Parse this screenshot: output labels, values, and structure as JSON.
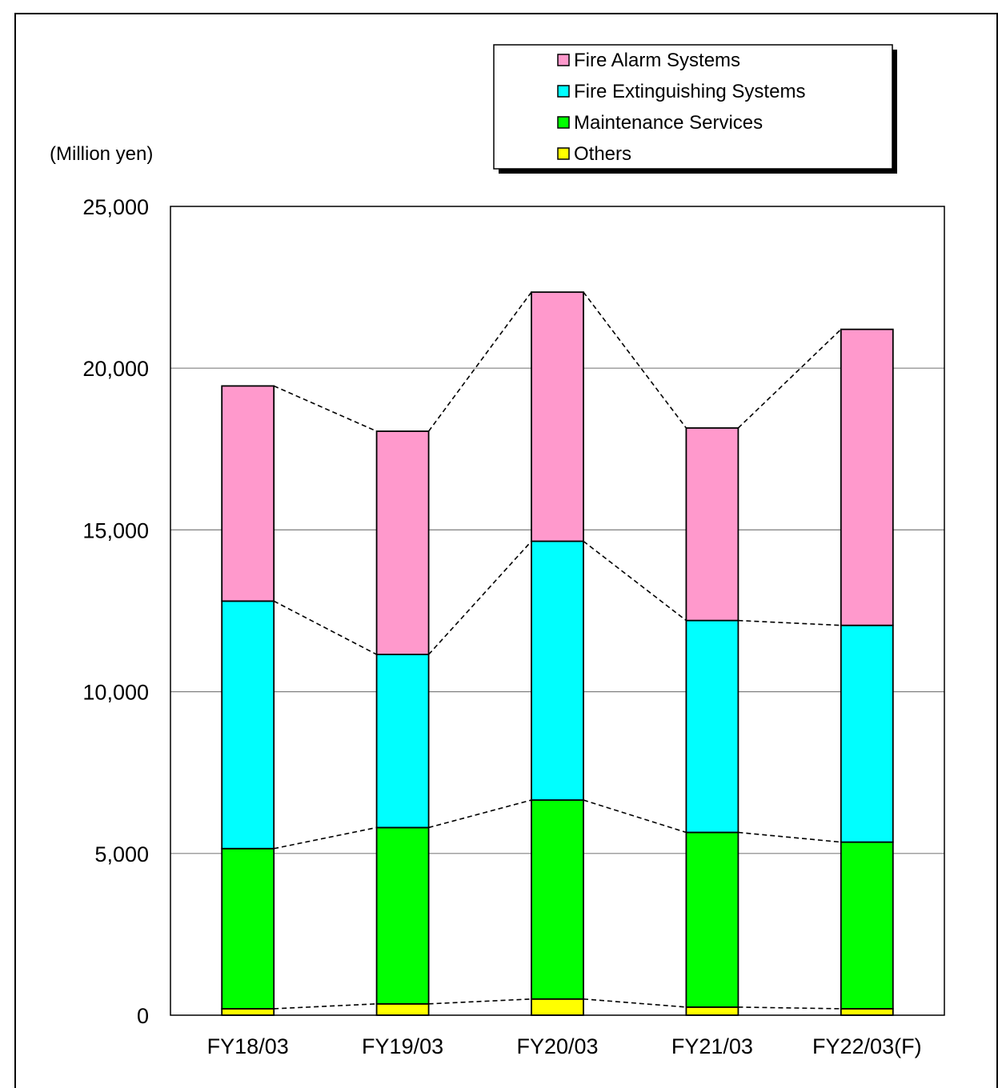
{
  "chart_data": {
    "type": "bar",
    "stacked": true,
    "unit_label": "(Million yen)",
    "categories": [
      "FY18/03",
      "FY19/03",
      "FY20/03",
      "FY21/03",
      "FY22/03(F)"
    ],
    "series": [
      {
        "name": "Others",
        "color": "#ffff00",
        "values": [
          200,
          350,
          500,
          250,
          200
        ]
      },
      {
        "name": "Maintenance Services",
        "color": "#00ff00",
        "values": [
          4950,
          5450,
          6150,
          5400,
          5150
        ]
      },
      {
        "name": "Fire Extinguishing Systems",
        "color": "#00ffff",
        "values": [
          7650,
          5350,
          8000,
          6550,
          6700
        ]
      },
      {
        "name": "Fire Alarm Systems",
        "color": "#ff99cc",
        "values": [
          6650,
          6900,
          7700,
          5950,
          9150
        ]
      }
    ],
    "legend_order": [
      "Fire Alarm Systems",
      "Fire Extinguishing Systems",
      "Maintenance Services",
      "Others"
    ],
    "ylim": [
      0,
      25000
    ],
    "yticks": [
      "0",
      "5,000",
      "10,000",
      "15,000",
      "20,000",
      "25,000"
    ],
    "grid": true,
    "legend_position": "top-right",
    "connector_lines": "dashed"
  }
}
